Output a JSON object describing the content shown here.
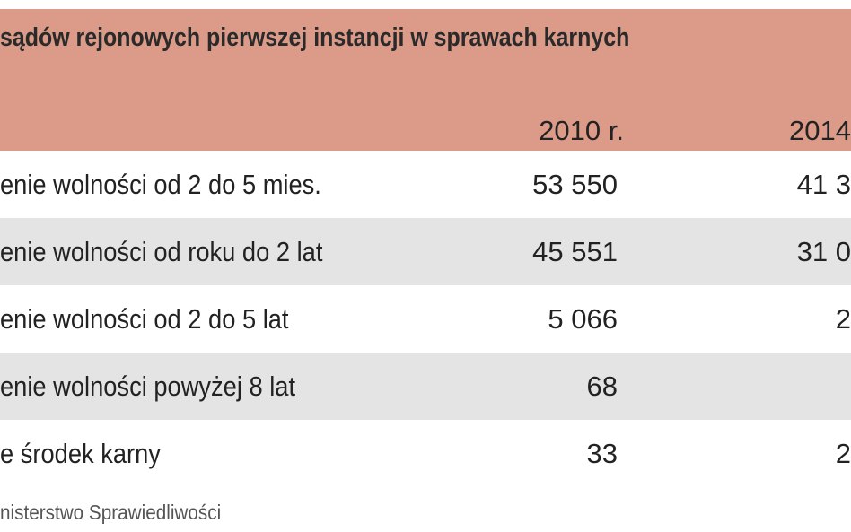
{
  "header": {
    "title": "sądów rejonowych pierwszej instancji w sprawach karnych",
    "columns": [
      "2010 r.",
      "2014"
    ]
  },
  "table": {
    "rows": [
      [
        "enie wolności od 2 do 5 mies.",
        "53 550",
        "41 3"
      ],
      [
        "enie wolności od roku do 2 lat",
        "45 551",
        "31 0"
      ],
      [
        "enie wolności od 2 do 5 lat",
        "5 066",
        "2"
      ],
      [
        "enie wolności powyżej 8 lat",
        "68"
      ],
      [
        "e środek karny",
        "33",
        "2"
      ]
    ]
  },
  "footer": {
    "source": "nisterstwo Sprawiedliwości"
  }
}
